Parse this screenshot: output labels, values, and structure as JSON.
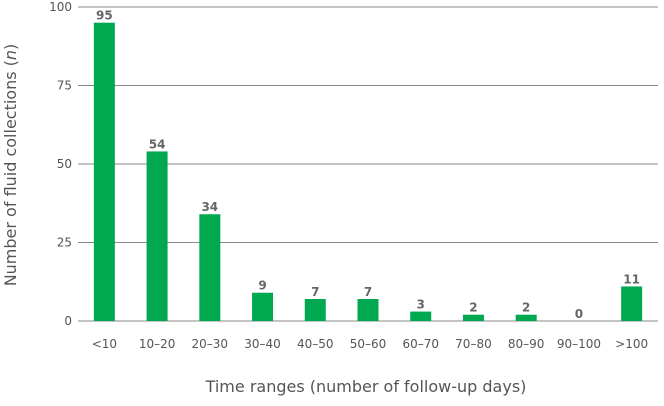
{
  "chart_data": {
    "type": "bar",
    "title": "",
    "xlabel": "Time ranges (number of follow-up days)",
    "ylabel": "Number of fluid collections (n)",
    "ylabel_main": "Number of fluid collections (",
    "ylabel_italic": "n",
    "ylabel_end": ")",
    "categories": [
      "<10",
      "10–20",
      "20–30",
      "30–40",
      "40–50",
      "50–60",
      "60–70",
      "70–80",
      "80–90",
      "90–100",
      ">100"
    ],
    "values": [
      95,
      54,
      34,
      9,
      7,
      7,
      3,
      2,
      2,
      0,
      11
    ],
    "data_labels": [
      "95",
      "54",
      "34",
      "9",
      "7",
      "7",
      "3",
      "2",
      "2",
      "0",
      "11"
    ],
    "ylim": [
      0,
      100
    ],
    "yticks": [
      0,
      25,
      50,
      75,
      100
    ],
    "ytick_labels": [
      "0",
      "25",
      "50",
      "75",
      "100"
    ],
    "grid": true,
    "legend": "none",
    "bar_color": "#00a850"
  }
}
